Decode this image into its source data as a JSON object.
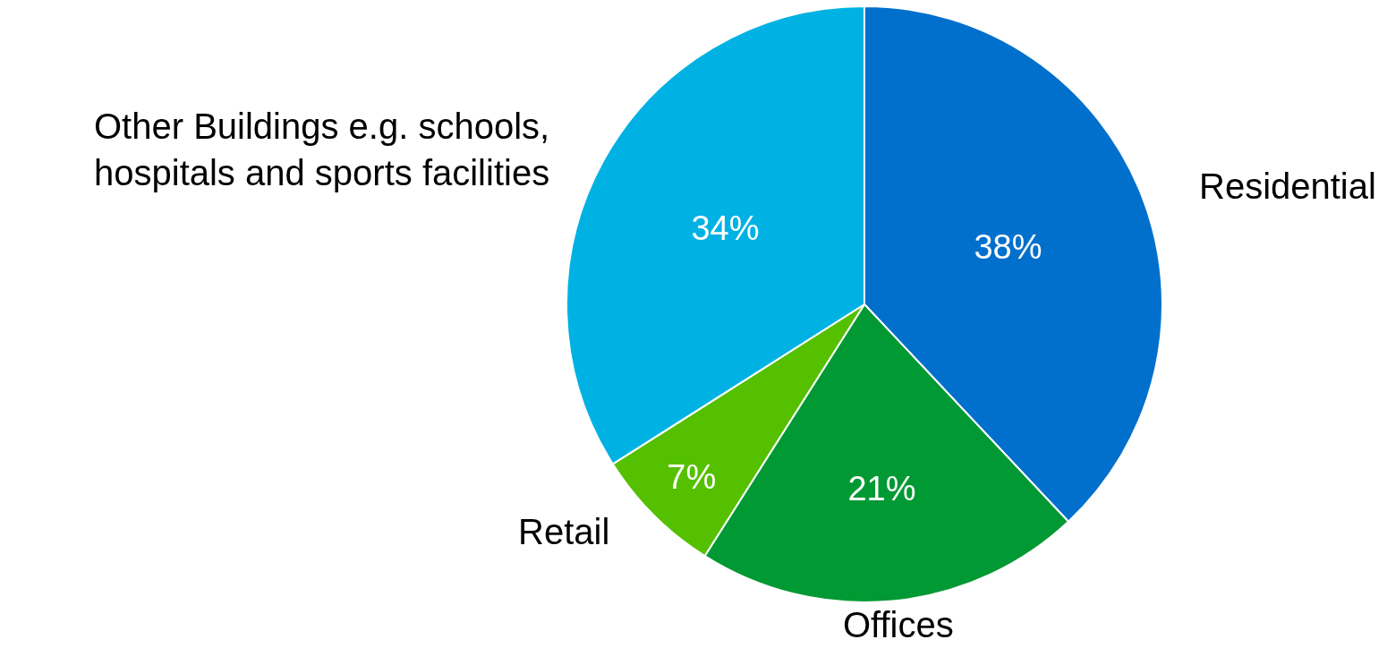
{
  "chart_data": {
    "type": "pie",
    "categories": [
      "Residential",
      "Offices",
      "Retail",
      "Other Buildings e.g. schools, hospitals and sports facilities"
    ],
    "values": [
      38,
      21,
      7,
      34
    ],
    "value_labels": [
      "38%",
      "21%",
      "7%",
      "34%"
    ],
    "colors": [
      "#0070cc",
      "#009933",
      "#55c000",
      "#00b2e3"
    ],
    "legend": false
  }
}
